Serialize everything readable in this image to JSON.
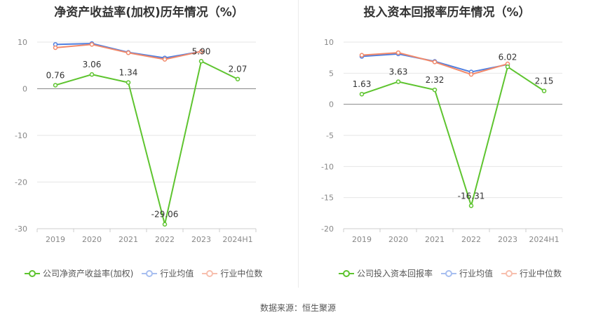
{
  "chart_data": [
    {
      "type": "line",
      "title": "净资产收益率(加权)历年情况（%）",
      "categories": [
        "2019",
        "2020",
        "2021",
        "2022",
        "2023",
        "2024H1"
      ],
      "ylim": [
        -30,
        10
      ],
      "yticks": [
        10,
        0,
        -10,
        -20,
        -30
      ],
      "series": [
        {
          "name": "公司净资产收益率(加权)",
          "color": "#5ec42f",
          "values": [
            0.76,
            3.06,
            1.34,
            -29.06,
            5.9,
            2.07
          ],
          "labels": [
            "0.76",
            "3.06",
            "1.34",
            "-29.06",
            "5.90",
            "2.07"
          ]
        },
        {
          "name": "行业均值",
          "color": "#4f7fe0",
          "values": [
            9.5,
            9.7,
            7.8,
            6.6,
            8.0,
            null
          ]
        },
        {
          "name": "行业中位数",
          "color": "#f2896a",
          "values": [
            8.8,
            9.5,
            7.7,
            6.3,
            8.0,
            null
          ]
        }
      ]
    },
    {
      "type": "line",
      "title": "投入资本回报率历年情况（%）",
      "categories": [
        "2019",
        "2020",
        "2021",
        "2022",
        "2023",
        "2024H1"
      ],
      "ylim": [
        -20,
        10
      ],
      "yticks": [
        10,
        5,
        0,
        -5,
        -10,
        -15,
        -20
      ],
      "series": [
        {
          "name": "公司投入资本回报率",
          "color": "#5ec42f",
          "values": [
            1.63,
            3.63,
            2.32,
            -16.31,
            6.02,
            2.15
          ],
          "labels": [
            "1.63",
            "3.63",
            "2.32",
            "-16.31",
            "6.02",
            "2.15"
          ]
        },
        {
          "name": "行业均值",
          "color": "#4f7fe0",
          "values": [
            7.7,
            8.1,
            6.9,
            5.2,
            6.4,
            null
          ]
        },
        {
          "name": "行业中位数",
          "color": "#f2896a",
          "values": [
            7.9,
            8.3,
            6.8,
            4.8,
            6.5,
            null
          ]
        }
      ]
    }
  ],
  "source": "数据来源：恒生聚源"
}
